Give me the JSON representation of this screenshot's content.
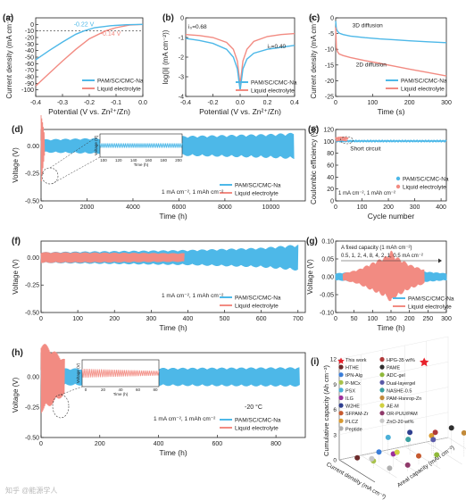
{
  "colors": {
    "pam": "#4db8e8",
    "liquid": "#f28b82",
    "axis": "#222222"
  },
  "legend": {
    "pam": "PAM/SC/CMC-Na",
    "liquid": "Liquid electrolyte"
  },
  "watermark": "知乎 @能源学人",
  "chart_data": [
    {
      "panel": "(a)",
      "type": "line",
      "xlabel": "Potential (V vs. Zn²⁺/Zn)",
      "ylabel": "Current density (mA cm⁻²)",
      "xlim": [
        -0.4,
        0.0
      ],
      "ylim": [
        -110,
        10
      ],
      "xticks": [
        "-0.4",
        "-0.3",
        "-0.2",
        "-0.1",
        "0.0"
      ],
      "yticks": [
        "-100",
        "-90",
        "-80",
        "-70",
        "-60",
        "-50",
        "-40",
        "-30",
        "-20",
        "-10",
        "0"
      ],
      "annotations": [
        "-0.22 V",
        "-0.14 V"
      ],
      "series": [
        {
          "name": "PAM/SC/CMC-Na",
          "x": [
            -0.4,
            -0.35,
            -0.3,
            -0.25,
            -0.22,
            -0.18,
            -0.12,
            -0.06,
            0.0
          ],
          "y": [
            -54,
            -40,
            -27,
            -15,
            -10,
            -5,
            -2,
            -0.5,
            0
          ]
        },
        {
          "name": "Liquid electrolyte",
          "x": [
            -0.4,
            -0.35,
            -0.3,
            -0.25,
            -0.2,
            -0.14,
            -0.1,
            -0.05,
            0.0
          ],
          "y": [
            -94,
            -75,
            -56,
            -38,
            -22,
            -10,
            -5,
            -1,
            0
          ]
        }
      ]
    },
    {
      "panel": "(b)",
      "type": "line",
      "xlabel": "Potential (V vs. Zn²⁺/Zn)",
      "ylabel": "log(|i| (mA cm⁻²))",
      "xlim": [
        -0.4,
        0.4
      ],
      "ylim": [
        -4,
        0
      ],
      "xticks": [
        "-0.4",
        "-0.2",
        "0.0",
        "0.2",
        "0.4"
      ],
      "yticks": [
        "-4",
        "-3",
        "-2",
        "-1",
        "0"
      ],
      "annotations": [
        "i₀=0.68",
        "i₀=0.40"
      ],
      "series": [
        {
          "name": "Liquid electrolyte",
          "x": [
            -0.4,
            -0.3,
            -0.2,
            -0.1,
            -0.05,
            -0.02,
            0.0,
            0.02,
            0.05,
            0.1,
            0.2,
            0.3,
            0.4
          ],
          "y": [
            -0.85,
            -0.9,
            -1.0,
            -1.25,
            -1.6,
            -2.2,
            -3.4,
            -2.2,
            -1.6,
            -1.2,
            -0.95,
            -0.85,
            -0.8
          ]
        },
        {
          "name": "PAM/SC/CMC-Na",
          "x": [
            -0.4,
            -0.3,
            -0.2,
            -0.1,
            -0.05,
            -0.02,
            0.0,
            0.02,
            0.05,
            0.1,
            0.2,
            0.3,
            0.4
          ],
          "y": [
            -1.05,
            -1.15,
            -1.3,
            -1.6,
            -2.0,
            -2.6,
            -3.7,
            -2.6,
            -2.1,
            -1.8,
            -1.6,
            -1.5,
            -1.4
          ]
        }
      ]
    },
    {
      "panel": "(c)",
      "type": "line",
      "xlabel": "Time (s)",
      "ylabel": "Current density (mA cm⁻²)",
      "xlim": [
        0,
        300
      ],
      "ylim": [
        -25,
        0
      ],
      "xticks": [
        "0",
        "100",
        "200",
        "300"
      ],
      "yticks": [
        "-25",
        "-20",
        "-15",
        "-10",
        "-5",
        "0"
      ],
      "annotations": [
        "3D diffusion",
        "2D diffusion"
      ],
      "series": [
        {
          "name": "PAM/SC/CMC-Na",
          "x": [
            0,
            2,
            5,
            10,
            20,
            40,
            80,
            120,
            160,
            200,
            250,
            300
          ],
          "y": [
            -1,
            -3.5,
            -4.3,
            -4.9,
            -5.3,
            -5.8,
            -6.3,
            -6.7,
            -7.0,
            -7.3,
            -7.6,
            -7.9
          ]
        },
        {
          "name": "Liquid electrolyte",
          "x": [
            0,
            2,
            5,
            10,
            20,
            40,
            80,
            120,
            160,
            200,
            250,
            300
          ],
          "y": [
            -3,
            -9.5,
            -10.8,
            -11.5,
            -12.0,
            -12.6,
            -13.6,
            -14.5,
            -15.4,
            -16.3,
            -17.4,
            -18.5
          ]
        }
      ]
    },
    {
      "panel": "(d)",
      "type": "line",
      "xlabel": "Time (h)",
      "ylabel": "Voltage (V)",
      "xlim": [
        0,
        11500
      ],
      "ylim": [
        -0.5,
        0.15
      ],
      "xticks": [
        "0",
        "2000",
        "4000",
        "6000",
        "8000",
        "10000"
      ],
      "yticks": [
        "-0.50",
        "-0.25",
        "0.00"
      ],
      "ytick_values": [
        -0.5,
        -0.25,
        0.0
      ],
      "condition": "1 mA cm⁻², 1 mAh cm⁻²",
      "inset": {
        "xticks": [
          "100",
          "120",
          "140",
          "160",
          "180",
          "200"
        ],
        "xlabel": "Time (h)",
        "ylabel": "Voltage (V)"
      },
      "series": [
        {
          "name": "PAM/SC/CMC-Na",
          "x": [
            0,
            2000,
            4000,
            6000,
            8000,
            10000,
            11000
          ],
          "amplitude": [
            0.06,
            0.07,
            0.08,
            0.09,
            0.1,
            0.11,
            0.12
          ]
        },
        {
          "name": "Liquid electrolyte",
          "x": [
            0,
            150
          ],
          "amplitude": [
            0.35,
            0.1
          ]
        }
      ]
    },
    {
      "panel": "(e)",
      "type": "scatter",
      "xlabel": "Cycle number",
      "ylabel": "Coulombic efficiency (%)",
      "xlim": [
        0,
        420
      ],
      "ylim": [
        0,
        120
      ],
      "xticks": [
        "0",
        "100",
        "200",
        "300",
        "400"
      ],
      "yticks": [
        "0",
        "20",
        "40",
        "60",
        "80",
        "100",
        "120"
      ],
      "annotations": [
        "Short circuit"
      ],
      "condition": "1 mA cm⁻², 1 mAh cm⁻²",
      "series": [
        {
          "name": "PAM/SC/CMC-Na",
          "x_range": [
            1,
            420
          ],
          "y_mean": 100.5
        },
        {
          "name": "Liquid electrolyte",
          "x_range": [
            1,
            45
          ],
          "y_mean": 104
        }
      ]
    },
    {
      "panel": "(f)",
      "type": "line",
      "xlabel": "Time (h)",
      "ylabel": "Voltage (V)",
      "xlim": [
        0,
        720
      ],
      "ylim": [
        -0.5,
        0.15
      ],
      "xticks": [
        "0",
        "100",
        "200",
        "300",
        "400",
        "500",
        "600",
        "700"
      ],
      "yticks": [
        "-0.50",
        "-0.25",
        "0.00"
      ],
      "ytick_values": [
        -0.5,
        -0.25,
        0.0
      ],
      "condition": "1 mA cm⁻², 1 mAh cm⁻²",
      "series": [
        {
          "name": "PAM/SC/CMC-Na",
          "x": [
            0,
            200,
            400,
            600,
            700
          ],
          "amplitude": [
            0.05,
            0.06,
            0.07,
            0.09,
            0.12
          ]
        },
        {
          "name": "Liquid electrolyte",
          "x": [
            0,
            390
          ],
          "amplitude": [
            0.05,
            0.04
          ]
        }
      ]
    },
    {
      "panel": "(g)",
      "type": "line",
      "xlabel": "Time (h)",
      "ylabel": "Voltage (V)",
      "xlim": [
        0,
        300
      ],
      "ylim": [
        -0.1,
        0.1
      ],
      "xticks": [
        "0",
        "50",
        "100",
        "150",
        "200",
        "250",
        "300"
      ],
      "yticks": [
        "-0.10",
        "-0.05",
        "0.00",
        "0.05",
        "0.10"
      ],
      "ytick_values": [
        -0.1,
        -0.05,
        0.0,
        0.05,
        0.1
      ],
      "annotations": [
        "A fixed capacity (1 mAh cm⁻²)",
        "0.5, 1, 2, 4, 8, 4, 2, 1, 0.5 mA cm⁻²"
      ],
      "series": [
        {
          "name": "PAM/SC/CMC-Na",
          "x": [
            0,
            60,
            100,
            140,
            150,
            160,
            200,
            240,
            300
          ],
          "amplitude": [
            0.01,
            0.015,
            0.03,
            0.055,
            0.07,
            0.055,
            0.03,
            0.015,
            0.01
          ]
        },
        {
          "name": "Liquid electrolyte",
          "x": [
            20,
            60,
            100,
            140,
            150,
            160,
            200,
            240
          ],
          "amplitude": [
            0.01,
            0.02,
            0.04,
            0.06,
            0.075,
            0.06,
            0.035,
            0.02
          ]
        }
      ]
    },
    {
      "panel": "(h)",
      "type": "line",
      "xlabel": "Time (h)",
      "ylabel": "Voltage (V)",
      "xlim": [
        0,
        900
      ],
      "ylim": [
        -0.5,
        0.2
      ],
      "xticks": [
        "0",
        "200",
        "400",
        "600",
        "800"
      ],
      "yticks": [
        "-0.50",
        "-0.25",
        "0.00"
      ],
      "ytick_values": [
        -0.5,
        -0.25,
        0.0
      ],
      "annotations": [
        "-20 °C"
      ],
      "condition": "1 mA cm⁻², 1 mAh cm⁻²",
      "inset": {
        "xticks": [
          "0",
          "20",
          "40",
          "60",
          "80"
        ],
        "xlabel": "Time (h)",
        "ylabel": "Voltage (V)"
      },
      "series": [
        {
          "name": "PAM/SC/CMC-Na",
          "x": [
            0,
            880
          ],
          "amplitude": [
            0.07,
            0.08
          ]
        },
        {
          "name": "Liquid electrolyte",
          "x": [
            0,
            80
          ],
          "amplitude": [
            0.3,
            0.15
          ]
        }
      ]
    },
    {
      "panel": "(i)",
      "type": "scatter",
      "zlabel": "Cumulative capacity (Ah cm⁻²)",
      "xlabel": "Current density (mA cm⁻²)",
      "ylabel": "Areal capacity (mAh cm⁻²)",
      "zticks": [
        "0",
        "3",
        "6",
        "9",
        "12"
      ],
      "entries": [
        "This work",
        "HTHE",
        "tPN-Alg",
        "P-MCx",
        "PSX",
        "ILG",
        "W2HE",
        "SFPAM-Zr",
        "PLCZ",
        "Peptide",
        "HPG-35 wt%",
        "PAME",
        "ADC-gel",
        "Dual-layergel",
        "NASHE-0.5",
        "PAM-Hsnrop-Zn",
        "AE-M",
        "OR-PUU/PAM",
        "ZnO-20 wt%"
      ],
      "entry_colors": [
        "#e8222c",
        "#6d2b2b",
        "#3a7dd8",
        "#a8c24a",
        "#4bb0d8",
        "#9c2f9c",
        "#2f3f8f",
        "#c65a2f",
        "#d99a2f",
        "#b0b0b0",
        "#b03a3a",
        "#2f2f2f",
        "#8fb83a",
        "#5a5aa8",
        "#3aa0a0",
        "#c28a3a",
        "#d0d040",
        "#8f3a6a",
        "#c8c8c8"
      ]
    }
  ]
}
